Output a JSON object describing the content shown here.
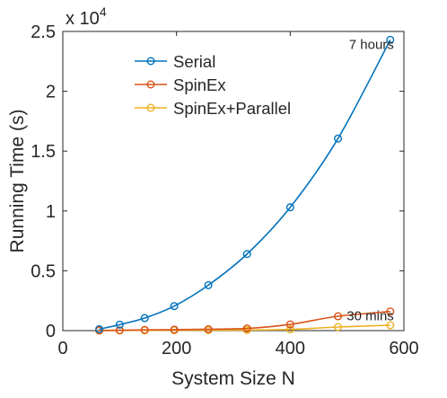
{
  "chart_data": {
    "type": "line",
    "xlabel": "System Size N",
    "ylabel": "Running Time (s)",
    "y_multiplier_label": {
      "base": "x 10",
      "exponent": "4"
    },
    "xlim": [
      0,
      600
    ],
    "ylim": [
      0,
      25000
    ],
    "x_ticks": [
      0,
      200,
      400,
      600
    ],
    "x_tick_labels": [
      "0",
      "200",
      "400",
      "600"
    ],
    "y_ticks": [
      0,
      5000,
      10000,
      15000,
      20000,
      25000
    ],
    "y_tick_labels": [
      "0",
      "0.5",
      "1",
      "1.5",
      "2",
      "2.5"
    ],
    "grid": false,
    "legend_position": "upper-center",
    "x": [
      64,
      100,
      144,
      196,
      256,
      324,
      400,
      484,
      576
    ],
    "series": [
      {
        "name": "Serial",
        "color": "#0072BD",
        "values": [
          120,
          500,
          1050,
          2050,
          3800,
          6400,
          10300,
          16050,
          24300
        ]
      },
      {
        "name": "SpinEx",
        "color": "#D95319",
        "values": [
          15,
          30,
          60,
          80,
          120,
          180,
          520,
          1200,
          1600
        ]
      },
      {
        "name": "SpinEx+Parallel",
        "color": "#EDB120",
        "values": [
          5,
          10,
          20,
          30,
          40,
          50,
          100,
          300,
          450
        ]
      }
    ],
    "annotations": [
      {
        "text": "7 hours",
        "x": 576,
        "y": 24300,
        "series": "Serial"
      },
      {
        "text": "30 mins",
        "x": 576,
        "y": 1600,
        "series": "SpinEx"
      }
    ]
  }
}
